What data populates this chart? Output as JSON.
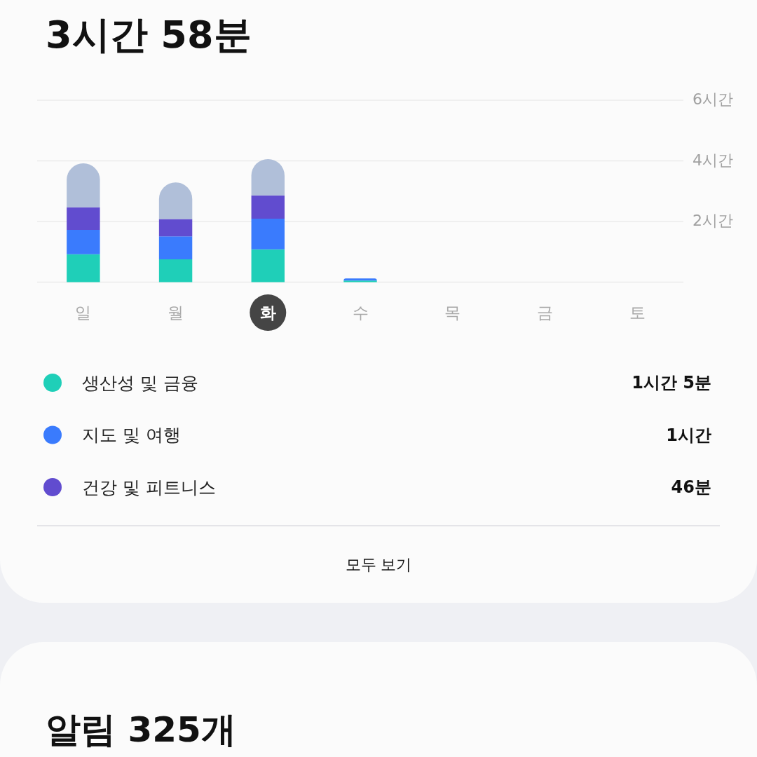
{
  "chart_data": {
    "type": "bar",
    "stacked": true,
    "title": "3시간 58분",
    "categories": [
      "일",
      "월",
      "화",
      "수",
      "목",
      "금",
      "토"
    ],
    "series": [
      {
        "name": "생산성 및 금융",
        "color": "#1fcfb8",
        "values": [
          0.92,
          0.75,
          1.08,
          0.05,
          null,
          null,
          null
        ]
      },
      {
        "name": "지도 및 여행",
        "color": "#3a7bfd",
        "values": [
          0.8,
          0.76,
          1.01,
          0.07,
          null,
          null,
          null
        ]
      },
      {
        "name": "건강 및 피트니스",
        "color": "#614ccf",
        "values": [
          0.75,
          0.57,
          0.77,
          null,
          null,
          null,
          null
        ]
      },
      {
        "color": "#b0bfd9",
        "values": [
          1.45,
          1.21,
          1.2,
          null,
          null,
          null,
          null
        ]
      }
    ],
    "ylim": [
      0,
      6
    ],
    "yticks": [
      {
        "value": 0,
        "label": null
      },
      {
        "value": 2,
        "label": "2시간"
      },
      {
        "value": 4,
        "label": "4시간"
      },
      {
        "value": 6,
        "label": "6시간"
      }
    ],
    "grid": "y",
    "legend": "bottom",
    "annotations": [
      "1시간 5분",
      "1시간",
      "46분",
      "모두 보기",
      "알림 325개"
    ]
  }
}
